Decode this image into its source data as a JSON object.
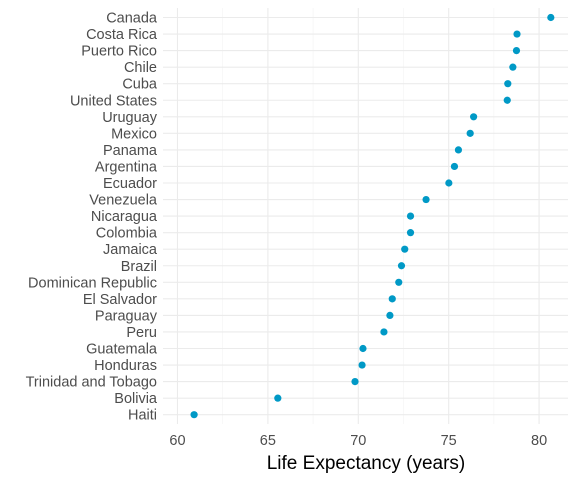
{
  "chart_data": {
    "type": "scatter",
    "xlabel": "Life Expectancy (years)",
    "ylabel": "",
    "xlim": [
      59.2,
      81.6
    ],
    "xticks": [
      60,
      65,
      70,
      75,
      80
    ],
    "xtick_labels": [
      "60",
      "65",
      "70",
      "75",
      "80"
    ],
    "grid": true,
    "point_color": "#0099c6",
    "categories": [
      "Canada",
      "Costa Rica",
      "Puerto Rico",
      "Chile",
      "Cuba",
      "United States",
      "Uruguay",
      "Mexico",
      "Panama",
      "Argentina",
      "Ecuador",
      "Venezuela",
      "Nicaragua",
      "Colombia",
      "Jamaica",
      "Brazil",
      "Dominican Republic",
      "El Salvador",
      "Paraguay",
      "Peru",
      "Guatemala",
      "Honduras",
      "Trinidad and Tobago",
      "Bolivia",
      "Haiti"
    ],
    "values": [
      80.65,
      78.78,
      78.75,
      78.55,
      78.27,
      78.24,
      76.38,
      76.19,
      75.54,
      75.32,
      75.01,
      73.75,
      72.89,
      72.89,
      72.57,
      72.39,
      72.24,
      71.88,
      71.75,
      71.42,
      70.26,
      70.21,
      69.82,
      65.55,
      60.92
    ]
  }
}
